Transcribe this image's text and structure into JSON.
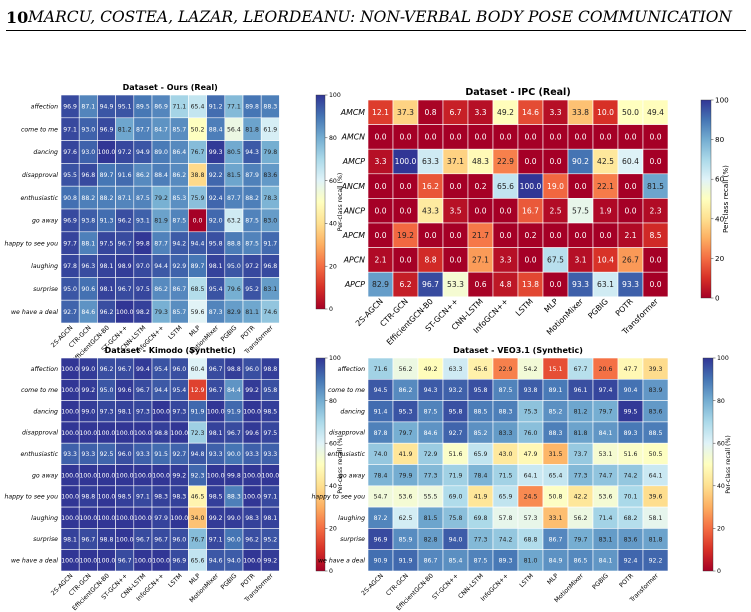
{
  "header": {
    "page_number": "10",
    "running_title": "MARCU, COSTEA, LAZAR, LEORDEANU: NON-VERBAL BODY POSE COMMUNICATION"
  },
  "chart_data": [
    {
      "type": "heatmap",
      "title": "Dataset - Ours (Real)",
      "xcategories": [
        "2S-AGCN",
        "CTR-GCN",
        "EfficientGCN-B0",
        "ST-GCN++",
        "CNN-LSTM",
        "InfoGCN++",
        "LSTM",
        "MLP",
        "MotionMixer",
        "PGBIG",
        "POTR",
        "Transformer"
      ],
      "ycategories": [
        "affection",
        "come to me",
        "dancing",
        "disapproval",
        "enthusiastic",
        "go away",
        "happy to see you",
        "laughing",
        "surprise",
        "we have a deal"
      ],
      "values": [
        [
          96.9,
          87.1,
          94.9,
          95.1,
          89.5,
          86.9,
          71.1,
          65.4,
          91.2,
          77.1,
          89.8,
          88.3
        ],
        [
          97.1,
          93.0,
          96.9,
          81.2,
          87.7,
          84.7,
          85.7,
          50.2,
          88.4,
          56.4,
          81.8,
          61.9
        ],
        [
          97.6,
          93.0,
          100.0,
          97.2,
          94.9,
          89.0,
          86.4,
          76.7,
          99.3,
          80.5,
          94.3,
          79.8
        ],
        [
          95.5,
          96.8,
          89.7,
          91.6,
          86.2,
          88.4,
          86.2,
          38.8,
          92.2,
          81.5,
          87.9,
          83.6
        ],
        [
          90.8,
          88.2,
          88.2,
          87.1,
          87.5,
          79.2,
          85.3,
          75.9,
          92.4,
          87.7,
          88.2,
          78.3
        ],
        [
          96.9,
          93.8,
          91.3,
          96.2,
          93.1,
          81.9,
          87.5,
          0.0,
          92.0,
          63.2,
          87.5,
          83.0
        ],
        [
          97.7,
          88.1,
          97.5,
          96.7,
          99.8,
          87.7,
          94.2,
          94.4,
          95.8,
          88.8,
          87.5,
          91.7
        ],
        [
          97.8,
          96.3,
          98.1,
          98.9,
          97.0,
          94.4,
          92.9,
          89.7,
          98.1,
          95.0,
          97.2,
          96.8
        ],
        [
          95.0,
          90.6,
          98.1,
          96.7,
          97.5,
          86.2,
          86.7,
          68.5,
          95.4,
          79.6,
          95.2,
          83.1
        ],
        [
          92.7,
          84.6,
          96.2,
          100.0,
          98.2,
          79.3,
          85.7,
          59.6,
          87.3,
          82.9,
          81.1,
          74.6
        ]
      ],
      "colorbar": {
        "label": "Per-class recall (%)",
        "ticks": [
          0,
          20,
          40,
          60,
          80,
          100
        ]
      },
      "colormap": "RdYlBu",
      "vmin": 0,
      "vmax": 100
    },
    {
      "type": "heatmap",
      "title": "Dataset - IPC (Real)",
      "xcategories": [
        "2S-AGCN",
        "CTR-GCN",
        "EfficientGCN-B0",
        "ST-GCN++",
        "CNN-LSTM",
        "InfoGCN++",
        "LSTM",
        "MLP",
        "MotionMixer",
        "PGBIG",
        "POTR",
        "Transformer"
      ],
      "ycategories": [
        "AMCM",
        "AMCN",
        "AMCP",
        "ANCM",
        "ANCP",
        "APCM",
        "APCN",
        "APCP"
      ],
      "values": [
        [
          12.1,
          37.3,
          0.8,
          6.7,
          3.3,
          49.2,
          14.6,
          3.3,
          33.8,
          10.0,
          50.0,
          49.4
        ],
        [
          0.0,
          0.0,
          0.0,
          0.0,
          0.0,
          0.0,
          0.0,
          0.0,
          0.0,
          0.0,
          0.0,
          0.0
        ],
        [
          3.3,
          100.0,
          63.3,
          37.1,
          48.3,
          22.9,
          0.0,
          0.0,
          90.2,
          42.5,
          60.4,
          0.0
        ],
        [
          0.0,
          0.0,
          16.2,
          0.0,
          0.2,
          65.6,
          100.0,
          19.0,
          0.0,
          22.1,
          0.0,
          81.5
        ],
        [
          0.0,
          0.0,
          43.3,
          3.5,
          0.0,
          0.0,
          16.7,
          2.5,
          57.5,
          1.9,
          0.0,
          2.3
        ],
        [
          0.0,
          19.2,
          0.0,
          0.0,
          21.7,
          0.0,
          0.2,
          0.0,
          0.0,
          0.0,
          2.1,
          8.5
        ],
        [
          2.1,
          0.0,
          8.8,
          0.0,
          27.1,
          3.3,
          0.0,
          67.5,
          3.1,
          10.4,
          26.7,
          0.0
        ],
        [
          82.9,
          6.2,
          96.7,
          53.3,
          0.6,
          4.8,
          13.8,
          0.0,
          93.3,
          63.1,
          93.3,
          0.0
        ]
      ],
      "colorbar": {
        "label": "Per-class recall (%)",
        "ticks": [
          0,
          20,
          40,
          60,
          80,
          100
        ]
      },
      "colormap": "RdYlBu",
      "vmin": 0,
      "vmax": 100
    },
    {
      "type": "heatmap",
      "title": "Dataset - Kimodo (Synthetic)",
      "xcategories": [
        "2S-AGCN",
        "CTR-GCN",
        "EfficientGCN-B0",
        "ST-GCN++",
        "CNN-LSTM",
        "InfoGCN++",
        "LSTM",
        "MLP",
        "MotionMixer",
        "PGBIG",
        "POTR",
        "Transformer"
      ],
      "ycategories": [
        "affection",
        "come to me",
        "dancing",
        "disapproval",
        "enthusiastic",
        "go away",
        "happy to see you",
        "laughing",
        "surprise",
        "we have a deal"
      ],
      "values": [
        [
          100.0,
          99.0,
          96.2,
          96.7,
          99.4,
          95.4,
          96.0,
          60.4,
          96.7,
          98.8,
          96.0,
          98.8
        ],
        [
          100.0,
          99.2,
          95.0,
          99.6,
          96.7,
          94.4,
          95.4,
          12.9,
          96.7,
          84.4,
          99.2,
          95.8
        ],
        [
          100.0,
          99.0,
          97.3,
          98.1,
          97.3,
          100.0,
          97.3,
          91.9,
          100.0,
          91.9,
          100.0,
          98.5
        ],
        [
          100.0,
          100.0,
          100.0,
          100.0,
          100.0,
          98.8,
          100.0,
          72.3,
          98.1,
          96.7,
          99.6,
          97.5
        ],
        [
          93.3,
          93.3,
          92.5,
          96.0,
          93.3,
          91.5,
          92.7,
          94.8,
          93.3,
          90.0,
          93.3,
          93.3
        ],
        [
          100.0,
          100.0,
          100.0,
          100.0,
          100.0,
          100.0,
          99.2,
          92.3,
          100.0,
          99.8,
          100.0,
          100.0
        ],
        [
          100.0,
          98.8,
          100.0,
          98.5,
          97.1,
          98.3,
          98.3,
          46.5,
          98.5,
          88.3,
          100.0,
          97.1
        ],
        [
          100.0,
          100.0,
          100.0,
          100.0,
          100.0,
          97.9,
          100.0,
          34.0,
          99.2,
          99.0,
          98.3,
          98.1
        ],
        [
          98.1,
          96.7,
          98.8,
          100.0,
          96.7,
          96.7,
          96.0,
          76.7,
          97.1,
          90.0,
          96.2,
          95.2
        ],
        [
          100.0,
          100.0,
          100.0,
          96.7,
          100.0,
          100.0,
          96.9,
          65.6,
          94.6,
          94.0,
          100.0,
          99.2
        ]
      ],
      "colorbar": {
        "label": "Per-class recall (%)",
        "ticks": [
          0,
          20,
          40,
          60,
          80,
          100
        ]
      },
      "colormap": "RdYlBu",
      "vmin": 0,
      "vmax": 100
    },
    {
      "type": "heatmap",
      "title": "Dataset - VEO3.1 (Synthetic)",
      "xcategories": [
        "2S-AGCN",
        "CTR-GCN",
        "EfficientGCN-B0",
        "ST-GCN++",
        "CNN-LSTM",
        "InfoGCN++",
        "LSTM",
        "MLP",
        "MotionMixer",
        "PGBIG",
        "POTR",
        "Transformer"
      ],
      "ycategories": [
        "affection",
        "come to me",
        "dancing",
        "disapproval",
        "enthusiastic",
        "go away",
        "happy to see you",
        "laughing",
        "surprise",
        "we have a deal"
      ],
      "values": [
        [
          71.6,
          56.2,
          49.2,
          63.3,
          45.6,
          22.9,
          54.2,
          15.1,
          67.7,
          20.6,
          47.7,
          39.3
        ],
        [
          94.5,
          86.2,
          94.3,
          93.2,
          95.8,
          87.5,
          93.8,
          89.1,
          96.1,
          97.4,
          90.4,
          83.9
        ],
        [
          91.4,
          95.3,
          87.5,
          95.8,
          88.5,
          88.3,
          75.3,
          85.2,
          81.2,
          79.7,
          99.5,
          83.6
        ],
        [
          87.8,
          79.7,
          84.6,
          92.7,
          85.2,
          83.3,
          76.0,
          88.3,
          81.8,
          84.1,
          89.3,
          88.5
        ],
        [
          74.0,
          41.9,
          72.9,
          51.6,
          65.9,
          43.0,
          47.9,
          31.5,
          73.7,
          53.1,
          51.6,
          50.5
        ],
        [
          78.4,
          79.9,
          77.3,
          71.9,
          78.4,
          71.5,
          64.1,
          65.4,
          77.3,
          74.7,
          74.2,
          64.1
        ],
        [
          54.7,
          53.6,
          55.5,
          69.0,
          41.9,
          65.9,
          24.5,
          50.8,
          42.2,
          53.6,
          70.1,
          39.6
        ],
        [
          87.2,
          62.5,
          81.5,
          75.8,
          69.8,
          57.8,
          57.3,
          33.1,
          56.2,
          71.4,
          68.2,
          58.1
        ],
        [
          96.9,
          85.9,
          82.8,
          94.0,
          77.3,
          74.2,
          68.8,
          86.7,
          79.7,
          83.1,
          83.6,
          81.8
        ],
        [
          90.9,
          91.9,
          86.7,
          85.4,
          87.5,
          89.3,
          81.0,
          84.9,
          86.5,
          84.1,
          92.4,
          92.2
        ]
      ],
      "colorbar": {
        "label": "Per-class recall (%)",
        "ticks": [
          0,
          20,
          40,
          60,
          80,
          100
        ]
      },
      "colormap": "RdYlBu",
      "vmin": 0,
      "vmax": 100
    }
  ]
}
